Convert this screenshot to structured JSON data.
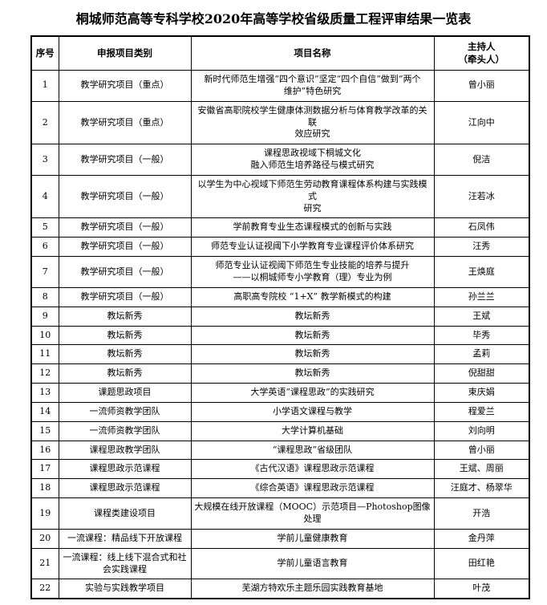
{
  "title": "桐城师范高等专科学校2020年高等学校省级质量工程评审结果一览表",
  "table": {
    "headers": [
      "序号",
      "申报项目类别",
      "项目名称",
      "主持人\n（牵头人）"
    ],
    "rows": [
      {
        "no": "1",
        "category": "教学研究项目（重点）",
        "project": "新时代师范生增强“四个意识”坚定“四个自信”做到“两个\n维护”特色研究",
        "host": "曾小丽"
      },
      {
        "no": "2",
        "category": "教学研究项目（重点）",
        "project": "安徽省高职院校学生健康体测数据分析与体育教学改革的关联\n效应研究",
        "host": "江向中"
      },
      {
        "no": "3",
        "category": "教学研究项目（一般）",
        "project": "课程思政视域下桐城文化\n融入师范生培养路径与模式研究",
        "host": "倪洁"
      },
      {
        "no": "4",
        "category": "教学研究项目（一般）",
        "project": "以学生为中心视域下师范生劳动教育课程体系构建与实践模式\n研究",
        "host": "汪若冰"
      },
      {
        "no": "5",
        "category": "教学研究项目（一般）",
        "project": "学前教育专业生态课程模式的创新与实践",
        "host": "石凤伟"
      },
      {
        "no": "6",
        "category": "教学研究项目（一般）",
        "project": "师范专业认证视阈下小学教育专业课程评价体系研究",
        "host": "汪秀"
      },
      {
        "no": "7",
        "category": "教学研究项目（一般）",
        "project": "师范专业认证视阈下师范生专业技能的培养与提升\n——以桐城师专小学教育（理）专业为例",
        "host": "王焕庭"
      },
      {
        "no": "8",
        "category": "教学研究项目（一般）",
        "project": "高职高专院校 “1+X” 教学新模式的构建",
        "host": "孙兰兰"
      },
      {
        "no": "9",
        "category": "教坛新秀",
        "project": "教坛新秀",
        "host": "王斌"
      },
      {
        "no": "10",
        "category": "教坛新秀",
        "project": "教坛新秀",
        "host": "毕秀"
      },
      {
        "no": "11",
        "category": "教坛新秀",
        "project": "教坛新秀",
        "host": "孟莉"
      },
      {
        "no": "12",
        "category": "教坛新秀",
        "project": "教坛新秀",
        "host": "倪甜甜"
      },
      {
        "no": "13",
        "category": "课题思政项目",
        "project": "大学英语“课程思政”的实践研究",
        "host": "束庆娟"
      },
      {
        "no": "14",
        "category": "一流师资教学团队",
        "project": "小学语文课程与教学",
        "host": "程爱兰"
      },
      {
        "no": "15",
        "category": "一流师资教学团队",
        "project": "大学计算机基础",
        "host": "刘向明"
      },
      {
        "no": "16",
        "category": "课程思政教学团队",
        "project": "“课程思政”省级团队",
        "host": "曾小丽"
      },
      {
        "no": "17",
        "category": "课程思政示范课程",
        "project": "《古代汉语》课程思政示范课程",
        "host": "王斌、周丽"
      },
      {
        "no": "18",
        "category": "课程思政示范课程",
        "project": "《综合英语》课程思政示范课程",
        "host": "汪庭才、杨翠华"
      },
      {
        "no": "19",
        "category": "课程类建设项目",
        "project": "大规模在线开放课程（MOOC）示范项目—Photoshop图像处理",
        "host": "开浩"
      },
      {
        "no": "20",
        "category": "一流课程：精品线下开放课程",
        "project": "学前儿童健康教育",
        "host": "金丹萍"
      },
      {
        "no": "21",
        "category": "一流课程：线上线下混合式和社\n会实践课程",
        "project": "学前儿童语言教育",
        "host": "田红艳"
      },
      {
        "no": "22",
        "category": "实验与实践教学项目",
        "project": "芜湖方特欢乐主题乐园实践教育基地",
        "host": "叶茂"
      }
    ]
  }
}
